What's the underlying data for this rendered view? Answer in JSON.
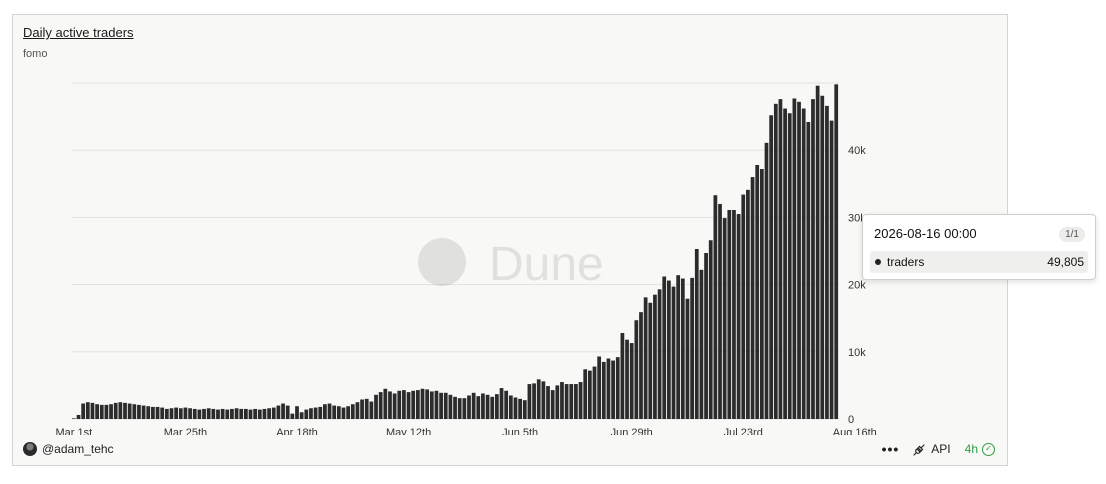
{
  "header": {
    "title": "Daily active traders",
    "subtitle": "fomo"
  },
  "watermark": "Dune",
  "footer": {
    "author": "@adam_tehc",
    "more_label": "•••",
    "api_label": "API",
    "refresh_label": "4h"
  },
  "tooltip": {
    "timestamp": "2026-08-16 00:00",
    "page": "1/1",
    "series_name": "traders",
    "value": "49,805"
  },
  "colors": {
    "bar": "#2b2b2b",
    "grid": "#e2e2e0",
    "axis_text": "#333333",
    "refresh_ok": "#2f9e44"
  },
  "chart_data": {
    "type": "bar",
    "title": "Daily active traders",
    "subtitle": "fomo",
    "x_start": "2026-03-01",
    "x_end": "2026-08-16",
    "xticks": [
      "Mar 1st",
      "Mar 25th",
      "Apr 18th",
      "May 12th",
      "Jun 5th",
      "Jun 29th",
      "Jul 23rd",
      "Aug 16th"
    ],
    "y_axis_side": "right",
    "ylim": [
      0,
      50000
    ],
    "yticks": [
      0,
      10000,
      20000,
      30000,
      40000
    ],
    "ytick_labels": [
      "0",
      "10k",
      "20k",
      "30k",
      "40k"
    ],
    "grid": true,
    "series": [
      {
        "name": "traders",
        "values": [
          100,
          600,
          2300,
          2500,
          2400,
          2200,
          2100,
          2100,
          2200,
          2400,
          2500,
          2400,
          2300,
          2200,
          2100,
          2000,
          1900,
          1800,
          1800,
          1700,
          1500,
          1600,
          1700,
          1600,
          1700,
          1600,
          1500,
          1400,
          1500,
          1600,
          1500,
          1400,
          1500,
          1400,
          1500,
          1600,
          1500,
          1500,
          1400,
          1500,
          1400,
          1500,
          1600,
          1700,
          2000,
          2300,
          2000,
          800,
          1900,
          1000,
          1400,
          1600,
          1700,
          1800,
          2200,
          2300,
          2000,
          1900,
          1700,
          1900,
          2200,
          2500,
          2900,
          3000,
          2600,
          3600,
          4000,
          4500,
          4100,
          3800,
          4200,
          4300,
          4000,
          4200,
          4300,
          4500,
          4400,
          4100,
          4200,
          3900,
          3900,
          3600,
          3300,
          3100,
          3100,
          3500,
          3900,
          3400,
          3800,
          3600,
          3300,
          3700,
          4600,
          4200,
          3500,
          3200,
          3000,
          2800,
          5200,
          5300,
          5900,
          5600,
          4900,
          4300,
          5000,
          5500,
          5200,
          5200,
          5200,
          5500,
          7400,
          7200,
          7800,
          9300,
          8500,
          9000,
          8700,
          9200,
          12800,
          11800,
          11300,
          14700,
          15900,
          18100,
          17300,
          18500,
          19300,
          21200,
          20600,
          19700,
          21400,
          20900,
          17900,
          21000,
          25300,
          22200,
          24700,
          26600,
          33300,
          32000,
          29900,
          31100,
          31100,
          30500,
          33400,
          34100,
          36000,
          37800,
          37200,
          41100,
          45200,
          46900,
          47600,
          46200,
          45500,
          47700,
          47200,
          46200,
          44200,
          47600,
          49600,
          48100,
          46600,
          44400,
          49800
        ]
      }
    ]
  }
}
